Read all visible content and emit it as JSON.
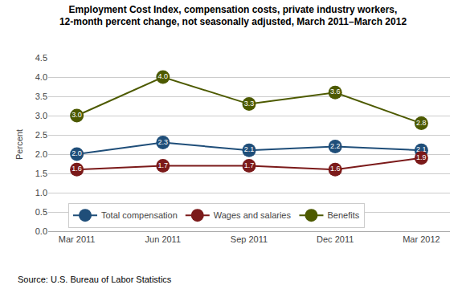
{
  "chart_data": {
    "type": "line",
    "title": "Employment Cost Index, compensation costs, private industry workers,\n12-month percent change, not seasonally adjusted, March 2011–March 2012",
    "ylabel": "Percent",
    "annotations": [
      "Source: U.S. Bureau of Labor Statistics"
    ],
    "categories": [
      "Mar 2011",
      "Jun 2011",
      "Sep 2011",
      "Dec 2011",
      "Mar 2012"
    ],
    "series": [
      {
        "name": "Total compensation",
        "color": "#1f4e79",
        "values": [
          2.0,
          2.3,
          2.1,
          2.2,
          2.1
        ],
        "value_labels": [
          "2.0",
          "2.3",
          "2.1",
          "2.2",
          "2.1"
        ]
      },
      {
        "name": "Wages and salaries",
        "color": "#7b1a1a",
        "values": [
          1.6,
          1.7,
          1.7,
          1.6,
          1.9
        ],
        "value_labels": [
          "1.6",
          "1.7",
          "1.7",
          "1.6",
          "1.9"
        ]
      },
      {
        "name": "Benefits",
        "color": "#4d5a00",
        "values": [
          3.0,
          4.0,
          3.3,
          3.6,
          2.8
        ],
        "value_labels": [
          "3.0",
          "4.0",
          "3.3",
          "3.6",
          "2.8"
        ]
      }
    ],
    "ylim": [
      0.0,
      4.5
    ],
    "yticks": [
      {
        "value": 0,
        "label": "0.0"
      },
      0.5,
      {
        "value": 1,
        "label": "1.0"
      },
      1.5,
      {
        "value": 2,
        "label": "2.0"
      },
      2.5,
      {
        "value": 3,
        "label": "3.0"
      },
      3.5,
      {
        "value": 4,
        "label": "4.0"
      },
      4.5
    ],
    "grid": true,
    "legend": "lower left",
    "data_labels": true,
    "marker": "circle"
  }
}
